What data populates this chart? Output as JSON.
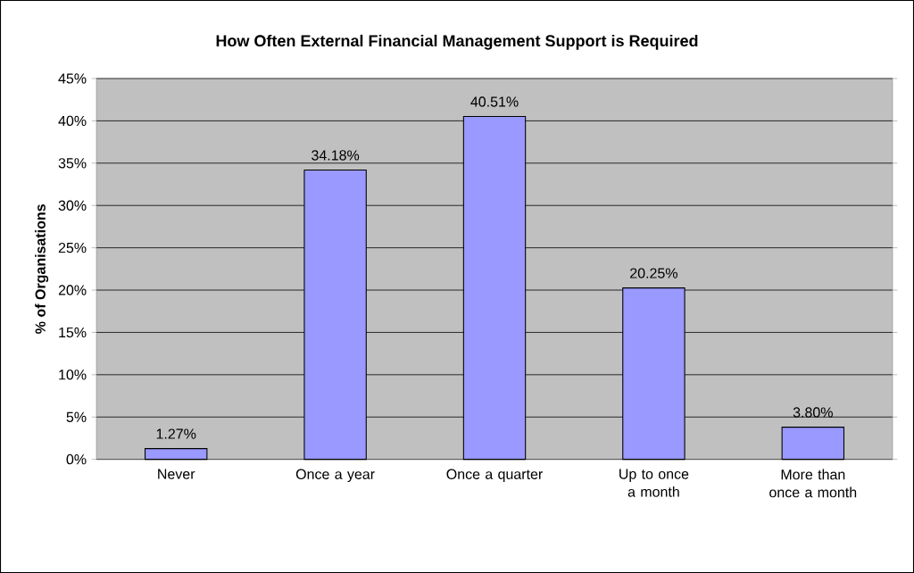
{
  "chart_data": {
    "type": "bar",
    "title": "How Often External Financial Management Support is Required",
    "ylabel": "% of Organisations",
    "categories": [
      "Never",
      "Once a year",
      "Once a quarter",
      "Up to once a month",
      "More than once a month"
    ],
    "values": [
      1.27,
      34.18,
      40.51,
      20.25,
      3.8
    ],
    "value_labels": [
      "1.27%",
      "34.18%",
      "40.51%",
      "20.25%",
      "3.80%"
    ],
    "color": "#9999ff",
    "ylim": [
      0,
      45
    ],
    "yticks": [
      {
        "value": 0,
        "label": "0%"
      },
      {
        "value": 5,
        "label": "5%"
      },
      {
        "value": 10,
        "label": "10%"
      },
      {
        "value": 15,
        "label": "15%"
      },
      {
        "value": 20,
        "label": "20%"
      },
      {
        "value": 25,
        "label": "25%"
      },
      {
        "value": 30,
        "label": "30%"
      },
      {
        "value": 35,
        "label": "35%"
      },
      {
        "value": 40,
        "label": "40%"
      },
      {
        "value": 45,
        "label": "45%"
      }
    ],
    "grid": "y"
  }
}
